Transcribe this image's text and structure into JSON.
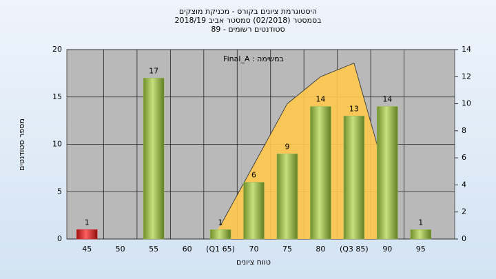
{
  "chart_data": {
    "type": "bar",
    "title": "היסטוגרמת ציונים בקורס - מכניקת מוצקים",
    "subtitle": "בסמסטר  (02/2018)  סמסטר אביב 2018/19",
    "subtitle2": "89 - סטודנטים רשומים",
    "annotation": "Final_A : במשימה",
    "x_label": "טווח ציונים",
    "y_label": "מספר סטודנטים",
    "categories": [
      "45",
      "50",
      "55",
      "60",
      "(Q1 65)",
      "70",
      "75",
      "80",
      "(Q3 85)",
      "90",
      "95"
    ],
    "series": [
      {
        "type": "bar",
        "colors": [
          "#e03030",
          "#9bbb59",
          "#9bbb59",
          "#9bbb59",
          "#9bbb59",
          "#9bbb59",
          "#9bbb59",
          "#9bbb59",
          "#9bbb59",
          "#9bbb59",
          "#9bbb59"
        ],
        "values": [
          1,
          0,
          17,
          0,
          1,
          6,
          9,
          14,
          13,
          14,
          1
        ]
      },
      {
        "type": "area",
        "axis": "y2",
        "color": "#ffc94d",
        "values": [
          null,
          null,
          null,
          null,
          1,
          5.5,
          10,
          12,
          13,
          4.3,
          null
        ]
      }
    ],
    "ylim": [
      0,
      20
    ],
    "yticks": [
      0,
      5,
      10,
      15,
      20
    ],
    "y2lim": [
      0,
      14
    ],
    "y2ticks": [
      0,
      2,
      4,
      6,
      8,
      10,
      12,
      14
    ],
    "grid": true
  }
}
